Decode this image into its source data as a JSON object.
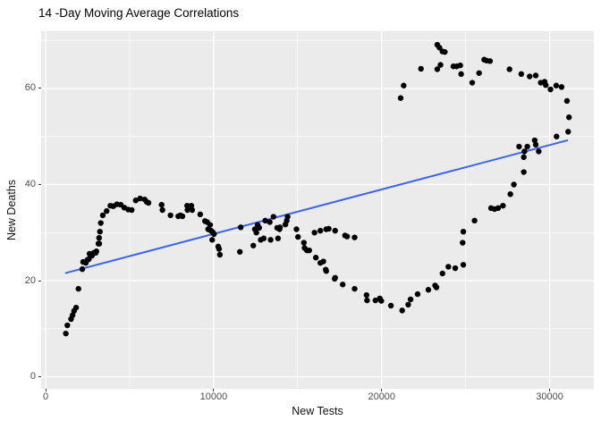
{
  "chart": {
    "title": "14 -Day Moving Average Correlations",
    "xlabel": "New Tests",
    "ylabel": "New Deaths"
  },
  "chart_data": {
    "type": "scatter",
    "title": "14 -Day Moving Average Correlations",
    "xlabel": "New Tests",
    "ylabel": "New Deaths",
    "xlim": [
      -270,
      32630
    ],
    "ylim": [
      -2.5,
      71.9
    ],
    "x_major_ticks": [
      0,
      10000,
      20000,
      30000
    ],
    "x_minor_ticks": [
      5000,
      15000,
      25000
    ],
    "y_major_ticks": [
      0,
      20,
      40,
      60
    ],
    "y_minor_ticks": [
      10,
      30,
      50,
      70
    ],
    "grid": true,
    "legend": "none",
    "panel_bg": "#EBEBEB",
    "grid_color": "#FFFFFF",
    "point_color": "#000000",
    "point_radius": 3.2,
    "tick_label_color": "#4D4D4D",
    "smooth_line": {
      "color": "#3D66E3",
      "x1": 1200,
      "y1": 21.6,
      "x2": 31050,
      "y2": 49.2
    },
    "points": [
      [
        1200,
        9.0
      ],
      [
        1290,
        10.7
      ],
      [
        1510,
        12.0
      ],
      [
        1600,
        12.8
      ],
      [
        1690,
        13.7
      ],
      [
        1810,
        14.4
      ],
      [
        1950,
        18.3
      ],
      [
        2180,
        22.4
      ],
      [
        2230,
        23.9
      ],
      [
        2390,
        23.7
      ],
      [
        2480,
        24.3
      ],
      [
        2570,
        24.5
      ],
      [
        2610,
        25.6
      ],
      [
        2750,
        25.2
      ],
      [
        2820,
        25.6
      ],
      [
        2870,
        25.8
      ],
      [
        2980,
        25.8
      ],
      [
        3020,
        26.1
      ],
      [
        3140,
        27.7
      ],
      [
        3190,
        27.7
      ],
      [
        3180,
        28.9
      ],
      [
        3230,
        30.2
      ],
      [
        3280,
        32.0
      ],
      [
        3400,
        33.6
      ],
      [
        3630,
        34.5
      ],
      [
        3850,
        35.6
      ],
      [
        4030,
        35.5
      ],
      [
        4240,
        35.9
      ],
      [
        4470,
        35.8
      ],
      [
        4680,
        35.2
      ],
      [
        4910,
        34.8
      ],
      [
        5120,
        34.7
      ],
      [
        5360,
        36.7
      ],
      [
        5620,
        37.1
      ],
      [
        5890,
        36.9
      ],
      [
        6010,
        36.4
      ],
      [
        6120,
        36.2
      ],
      [
        6900,
        35.8
      ],
      [
        6950,
        34.7
      ],
      [
        7430,
        33.6
      ],
      [
        7890,
        33.4
      ],
      [
        8020,
        33.6
      ],
      [
        8140,
        33.4
      ],
      [
        8420,
        35.6
      ],
      [
        8440,
        34.7
      ],
      [
        8670,
        35.6
      ],
      [
        8720,
        34.7
      ],
      [
        9200,
        33.8
      ],
      [
        9480,
        32.4
      ],
      [
        9610,
        32.2
      ],
      [
        9670,
        30.7
      ],
      [
        9790,
        31.6
      ],
      [
        9840,
        30.4
      ],
      [
        9910,
        30.2
      ],
      [
        9960,
        30.0
      ],
      [
        10020,
        29.7
      ],
      [
        9910,
        28.5
      ],
      [
        10270,
        27.1
      ],
      [
        10320,
        26.6
      ],
      [
        10370,
        25.4
      ],
      [
        11560,
        26.0
      ],
      [
        11610,
        31.1
      ],
      [
        12360,
        27.3
      ],
      [
        12450,
        30.7
      ],
      [
        12540,
        30.0
      ],
      [
        12620,
        31.6
      ],
      [
        12710,
        31.0
      ],
      [
        12800,
        28.5
      ],
      [
        12980,
        28.8
      ],
      [
        13070,
        32.5
      ],
      [
        13340,
        32.2
      ],
      [
        13390,
        28.5
      ],
      [
        13560,
        33.3
      ],
      [
        13780,
        31.0
      ],
      [
        13830,
        28.8
      ],
      [
        13920,
        30.7
      ],
      [
        13950,
        31.1
      ],
      [
        14270,
        31.7
      ],
      [
        14350,
        32.5
      ],
      [
        14400,
        33.3
      ],
      [
        14930,
        30.7
      ],
      [
        15020,
        29.1
      ],
      [
        15370,
        27.9
      ],
      [
        15410,
        26.8
      ],
      [
        15550,
        26.3
      ],
      [
        15690,
        26.3
      ],
      [
        16000,
        30.0
      ],
      [
        16080,
        24.8
      ],
      [
        16350,
        30.4
      ],
      [
        16350,
        23.7
      ],
      [
        16530,
        24.0
      ],
      [
        16670,
        22.3
      ],
      [
        16700,
        30.7
      ],
      [
        16850,
        30.8
      ],
      [
        16700,
        22.0
      ],
      [
        17200,
        20.4
      ],
      [
        17230,
        30.4
      ],
      [
        17230,
        20.6
      ],
      [
        17680,
        19.2
      ],
      [
        17820,
        29.4
      ],
      [
        17940,
        29.2
      ],
      [
        18390,
        29.0
      ],
      [
        18390,
        18.3
      ],
      [
        19100,
        17.0
      ],
      [
        19130,
        15.9
      ],
      [
        19630,
        15.9
      ],
      [
        19890,
        16.3
      ],
      [
        19980,
        15.8
      ],
      [
        20550,
        14.8
      ],
      [
        21220,
        13.8
      ],
      [
        21580,
        15.0
      ],
      [
        21720,
        16.1
      ],
      [
        22140,
        17.2
      ],
      [
        22780,
        18.1
      ],
      [
        23180,
        19.0
      ],
      [
        23260,
        18.6
      ],
      [
        23620,
        21.5
      ],
      [
        23970,
        22.9
      ],
      [
        24380,
        22.6
      ],
      [
        24860,
        23.3
      ],
      [
        24820,
        27.9
      ],
      [
        24860,
        30.2
      ],
      [
        25530,
        32.5
      ],
      [
        26510,
        35.1
      ],
      [
        26720,
        34.9
      ],
      [
        26930,
        35.1
      ],
      [
        27220,
        35.6
      ],
      [
        27660,
        38.0
      ],
      [
        27870,
        40.0
      ],
      [
        28460,
        42.6
      ],
      [
        28460,
        45.7
      ],
      [
        28500,
        46.9
      ],
      [
        28180,
        47.9
      ],
      [
        28670,
        47.9
      ],
      [
        29110,
        49.2
      ],
      [
        29170,
        48.3
      ],
      [
        29350,
        46.9
      ],
      [
        30410,
        50.0
      ],
      [
        31100,
        51.0
      ],
      [
        31150,
        54.0
      ],
      [
        31030,
        57.4
      ],
      [
        30710,
        60.3
      ],
      [
        30390,
        60.6
      ],
      [
        30050,
        59.8
      ],
      [
        29770,
        60.7
      ],
      [
        29700,
        61.4
      ],
      [
        29470,
        61.2
      ],
      [
        29170,
        62.7
      ],
      [
        28810,
        62.5
      ],
      [
        28310,
        63.0
      ],
      [
        27610,
        64.0
      ],
      [
        26450,
        65.7
      ],
      [
        26240,
        65.8
      ],
      [
        26100,
        66.0
      ],
      [
        25800,
        63.2
      ],
      [
        25390,
        61.2
      ],
      [
        24730,
        63.0
      ],
      [
        24680,
        64.8
      ],
      [
        24470,
        64.6
      ],
      [
        24270,
        64.6
      ],
      [
        23760,
        67.6
      ],
      [
        23620,
        67.7
      ],
      [
        23440,
        68.5
      ],
      [
        23310,
        69.1
      ],
      [
        23310,
        64.0
      ],
      [
        23500,
        64.9
      ],
      [
        22340,
        64.1
      ],
      [
        21310,
        60.6
      ],
      [
        21130,
        58.0
      ]
    ]
  }
}
